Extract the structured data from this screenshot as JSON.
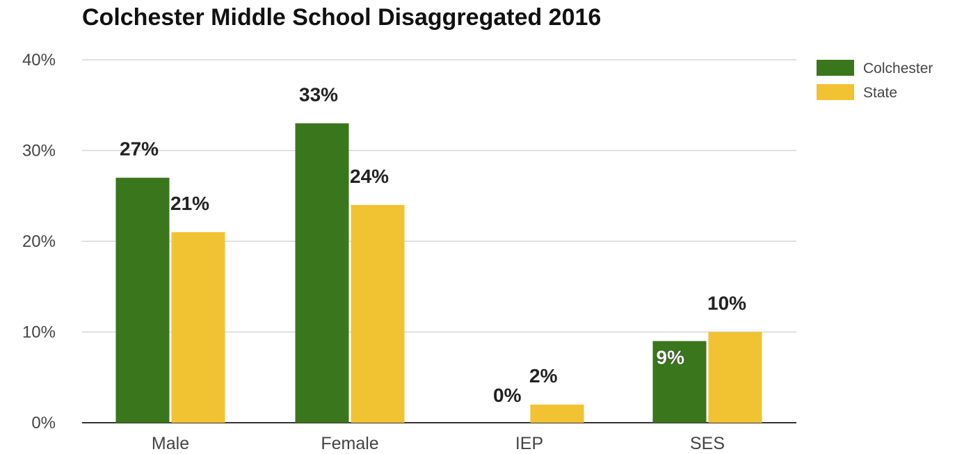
{
  "chart_data": {
    "type": "bar",
    "title": "Colchester Middle School Disaggregated 2016",
    "xlabel": "",
    "ylabel": "",
    "categories": [
      "Male",
      "Female",
      "IEP",
      "SES"
    ],
    "series": [
      {
        "name": "Colchester",
        "color": "#3a761c",
        "values": [
          27,
          33,
          0,
          9
        ],
        "labels": [
          "27%",
          "33%",
          "0%",
          "9%"
        ]
      },
      {
        "name": "State",
        "color": "#f1c232",
        "values": [
          21,
          24,
          2,
          10
        ],
        "labels": [
          "21%",
          "24%",
          "2%",
          "10%"
        ]
      }
    ],
    "ylim": [
      0,
      40
    ],
    "yticks": [
      0,
      10,
      20,
      30,
      40
    ],
    "ytick_labels": [
      "0%",
      "10%",
      "20%",
      "30%",
      "40%"
    ],
    "grid": true,
    "legend_position": "top-right"
  }
}
